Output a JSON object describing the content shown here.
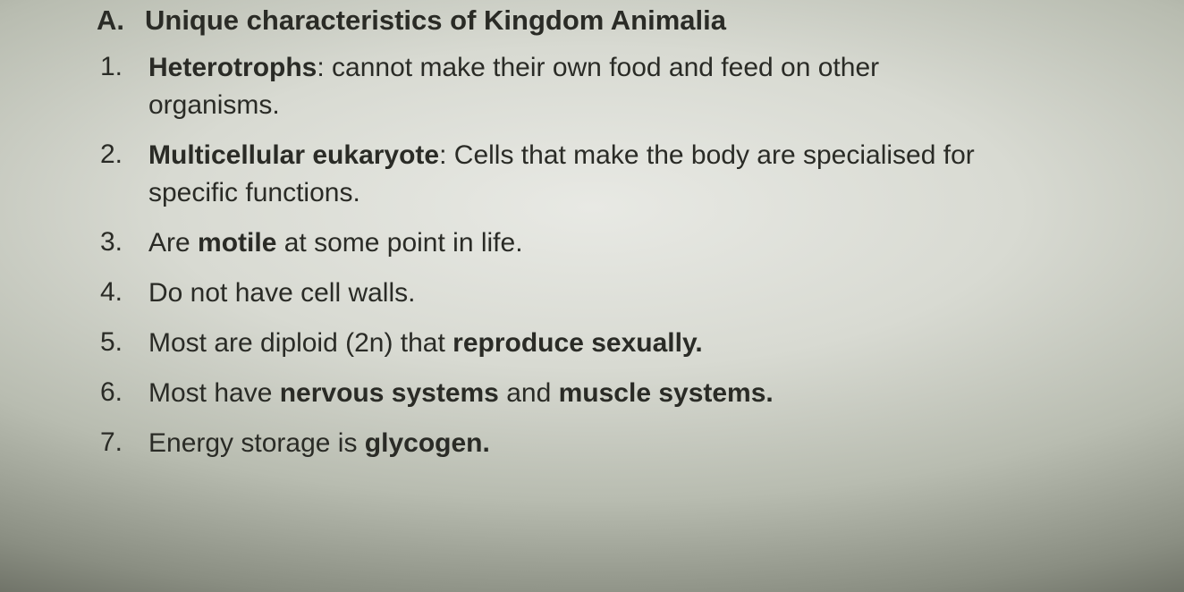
{
  "document": {
    "background_gradient": {
      "center": "#e8e9e4",
      "mid": "#b8bcb0",
      "edge": "#3a3c35"
    },
    "text_color": "#2a2b26",
    "section": {
      "letter": "A.",
      "title": "Unique characteristics of Kingdom Animalia",
      "title_fontsize": 31,
      "title_weight": "bold"
    },
    "body_fontsize": 30,
    "items": [
      {
        "num": "1.",
        "bold_lead": "Heterotrophs",
        "after_lead": ": cannot make their own food and feed on other organisms."
      },
      {
        "num": "2.",
        "bold_lead": "Multicellular eukaryote",
        "after_lead": ": Cells that make the body are specialised for specific functions."
      },
      {
        "num": "3.",
        "pre": "Are ",
        "bold_lead": "motile",
        "after_lead": " at some point in life."
      },
      {
        "num": "4.",
        "plain": "Do not have cell walls."
      },
      {
        "num": "5.",
        "pre": "Most are diploid (2n) that ",
        "bold_lead": "reproduce sexually."
      },
      {
        "num": "6.",
        "pre": "Most have ",
        "bold_lead": "nervous systems",
        "mid_plain": " and ",
        "bold_lead2": "muscle systems."
      },
      {
        "num": "7.",
        "pre": "Energy storage is ",
        "bold_lead": "glycogen."
      }
    ]
  }
}
